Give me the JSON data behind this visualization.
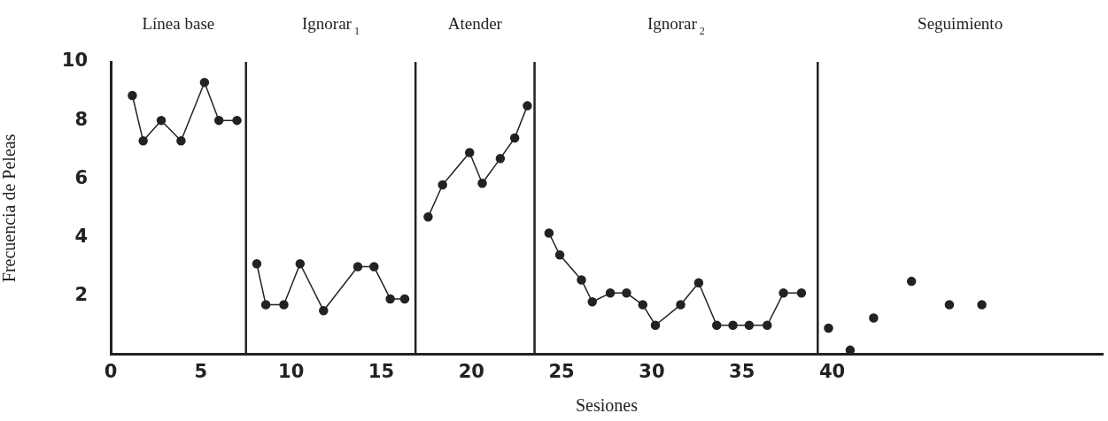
{
  "chart_data": {
    "type": "line",
    "xlabel": "Sesiones",
    "ylabel": "Frecuencia de Peleas",
    "xlim": [
      0,
      55
    ],
    "xticks": [
      0,
      5,
      10,
      15,
      20,
      25,
      30,
      35,
      40
    ],
    "ylim": [
      0,
      10
    ],
    "yticks": [
      2,
      4,
      6,
      8,
      10
    ],
    "grid": false,
    "legend": false,
    "marker": "circle",
    "line_style": "solid",
    "series": [
      {
        "type": "line",
        "color": "#222222",
        "x": [
          1.2,
          1.8,
          2.8,
          3.9,
          5.2,
          6.0,
          7.0
        ],
        "values": [
          8.85,
          7.3,
          8.0,
          7.3,
          9.3,
          8.0,
          8.0
        ]
      },
      {
        "type": "line",
        "color": "#222222",
        "x": [
          8.1,
          8.6,
          9.6,
          10.5,
          11.8,
          13.7,
          14.6,
          15.5,
          16.3
        ],
        "values": [
          3.1,
          1.7,
          1.7,
          3.1,
          1.5,
          3.0,
          3.0,
          1.9,
          1.9
        ]
      },
      {
        "type": "line",
        "color": "#222222",
        "x": [
          17.6,
          18.4,
          19.9,
          20.6,
          21.6,
          22.4,
          23.1
        ],
        "values": [
          4.7,
          5.8,
          6.9,
          5.85,
          6.7,
          7.4,
          8.5
        ]
      },
      {
        "type": "line",
        "color": "#222222",
        "x": [
          24.3,
          24.9,
          26.1,
          26.7,
          27.7,
          28.6,
          29.5,
          30.2,
          31.6,
          32.6,
          33.6,
          34.5,
          35.4,
          36.4,
          37.3,
          38.3
        ],
        "values": [
          4.15,
          3.4,
          2.55,
          1.8,
          2.1,
          2.1,
          1.7,
          1.0,
          1.7,
          2.45,
          1.0,
          1.0,
          1.0,
          1.0,
          2.1,
          2.1
        ]
      },
      {
        "type": "scatter",
        "color": "#222222",
        "x": [
          39.8,
          41.0,
          42.3,
          44.4,
          46.5,
          48.3
        ],
        "values": [
          0.9,
          0.15,
          1.25,
          2.5,
          1.7,
          1.7
        ]
      }
    ],
    "ref_lines": [
      {
        "axis": "x",
        "value": 7.5,
        "color": "#222222"
      },
      {
        "axis": "x",
        "value": 16.9,
        "color": "#222222"
      },
      {
        "axis": "x",
        "value": 23.5,
        "color": "#222222"
      },
      {
        "axis": "x",
        "value": 39.2,
        "color": "#222222"
      }
    ],
    "annotations": [
      "Línea base",
      "Ignorar$_{1}$",
      "Atender",
      "Ignorar$_{2}$",
      "Seguimiento"
    ]
  }
}
